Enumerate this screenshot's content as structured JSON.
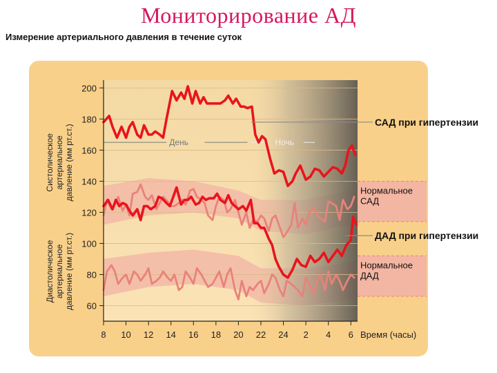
{
  "page": {
    "title": "Мониторирование АД",
    "subtitle": "Измерение артериального давления в течение суток"
  },
  "colors": {
    "panel": "#f9d08a",
    "band": "#f2b6a6",
    "series_hypertension": "#e8141c",
    "series_normal": "#e8827a",
    "night_shade": "#6d6457"
  },
  "chart_data": {
    "type": "line",
    "xlabel": "Время (часы)",
    "ylabel_systolic": "Систолическое артериальное давление (мм рт.ст.)",
    "ylabel_diastolic": "Диастолическое артериальное давление (мм рт.ст.)",
    "x_ticks": [
      "8",
      "10",
      "12",
      "14",
      "16",
      "18",
      "20",
      "22",
      "24",
      "2",
      "4",
      "6"
    ],
    "x_tick_hours": [
      8,
      10,
      12,
      14,
      16,
      18,
      20,
      22,
      24,
      26,
      28,
      30
    ],
    "y_ticks": [
      60,
      80,
      100,
      120,
      140,
      160,
      180,
      200
    ],
    "xlim": [
      8,
      30.6
    ],
    "ylim": [
      50,
      205
    ],
    "period_labels": {
      "day": "День",
      "night": "Ночь"
    },
    "night_start_hour": 21,
    "annotations": [
      {
        "text": "САД при гипертензии",
        "series": 0
      },
      {
        "text": "Нормальное САД",
        "band": 0
      },
      {
        "text": "ДАД при гипертензии",
        "series": 2
      },
      {
        "text": "Нормальное ДАД",
        "band": 1
      }
    ],
    "bands": [
      {
        "x": [
          8,
          12,
          16,
          20,
          22,
          26,
          30,
          30.6
        ],
        "low": [
          112,
          118,
          120,
          116,
          108,
          106,
          112,
          114
        ],
        "high": [
          137,
          142,
          140,
          134,
          128,
          128,
          134,
          135
        ]
      },
      {
        "x": [
          8,
          12,
          16,
          20,
          22,
          26,
          30,
          30.6
        ],
        "low": [
          66,
          72,
          74,
          70,
          62,
          60,
          64,
          66
        ],
        "high": [
          90,
          94,
          96,
          92,
          84,
          84,
          88,
          90
        ]
      }
    ],
    "series": [
      {
        "x": [
          8,
          8.5,
          8.8,
          9.2,
          9.6,
          10,
          10.3,
          10.6,
          11,
          11.3,
          11.6,
          12,
          12.3,
          12.6,
          13,
          13.3,
          13.6,
          14.1,
          14.5,
          14.9,
          15.2,
          15.5,
          15.9,
          16.2,
          16.6,
          16.9,
          17.2,
          17.6,
          18,
          18.4,
          18.8,
          19.1,
          19.5,
          19.8,
          20.2,
          20.5,
          20.8,
          21.2,
          21.5,
          21.8,
          22.1,
          22.4,
          22.8,
          23.2,
          23.6,
          24,
          24.4,
          24.8,
          25.1,
          25.5,
          26,
          26.4,
          26.8,
          27.2,
          27.6,
          28,
          28.4,
          28.8,
          29.2,
          29.5,
          29.8,
          30.1,
          30.4
        ],
        "values": [
          178,
          182,
          175,
          168,
          175,
          168,
          175,
          178,
          170,
          168,
          176,
          170,
          170,
          172,
          170,
          168,
          180,
          198,
          192,
          197,
          193,
          201,
          190,
          198,
          190,
          194,
          190,
          190,
          190,
          190,
          192,
          195,
          190,
          193,
          188,
          188,
          187,
          188,
          170,
          165,
          169,
          167,
          155,
          145,
          147,
          146,
          137,
          140,
          145,
          150,
          141,
          143,
          148,
          147,
          143,
          146,
          149,
          148,
          145,
          150,
          160,
          163,
          157
        ]
      },
      {
        "x": [
          8,
          8.3,
          8.7,
          9,
          9.3,
          9.7,
          10,
          10.3,
          10.6,
          11,
          11.3,
          11.7,
          12,
          12.3,
          12.7,
          13,
          13.3,
          13.7,
          14,
          14.3,
          14.7,
          15,
          15.3,
          15.7,
          16,
          16.3,
          16.7,
          17,
          17.3,
          17.7,
          18,
          18.3,
          18.7,
          19,
          19.3,
          19.7,
          20,
          20.3,
          20.7,
          21,
          21.3,
          21.7,
          22,
          22.3,
          22.7,
          23,
          23.3,
          23.7,
          24,
          24.3,
          24.7,
          25,
          25.3,
          25.7,
          26,
          26.3,
          26.7,
          27,
          27.3,
          27.7,
          28,
          28.3,
          28.7,
          29,
          29.3,
          29.7,
          30,
          30.3
        ],
        "values": [
          118,
          128,
          122,
          125,
          130,
          121,
          125,
          118,
          132,
          133,
          138,
          130,
          128,
          131,
          122,
          126,
          130,
          127,
          124,
          124,
          126,
          128,
          125,
          134,
          135,
          130,
          128,
          126,
          118,
          115,
          124,
          130,
          128,
          120,
          122,
          128,
          120,
          112,
          120,
          110,
          115,
          114,
          118,
          116,
          108,
          116,
          118,
          110,
          104,
          107,
          112,
          126,
          110,
          116,
          112,
          120,
          123,
          118,
          116,
          114,
          127,
          126,
          124,
          115,
          128,
          122,
          124,
          130
        ]
      },
      {
        "x": [
          8,
          8.4,
          8.8,
          9.1,
          9.4,
          9.7,
          10,
          10.3,
          10.6,
          11,
          11.3,
          11.6,
          11.9,
          12.2,
          12.6,
          12.9,
          13.2,
          13.6,
          13.9,
          14.2,
          14.5,
          14.9,
          15.2,
          15.5,
          15.8,
          16.2,
          16.5,
          16.8,
          17.1,
          17.4,
          17.8,
          18.1,
          18.4,
          18.8,
          19.1,
          19.4,
          19.7,
          20,
          20.4,
          20.7,
          21.1,
          21.4,
          21.7,
          22,
          22.3,
          22.7,
          23,
          23.3,
          23.6,
          24,
          24.4,
          24.8,
          25.2,
          25.6,
          26,
          26.4,
          26.8,
          27.2,
          27.6,
          28,
          28.4,
          28.8,
          29.2,
          29.6,
          30,
          30.2,
          30.5
        ],
        "values": [
          124,
          128,
          122,
          128,
          124,
          126,
          125,
          121,
          118,
          122,
          115,
          124,
          124,
          122,
          124,
          130,
          129,
          126,
          124,
          130,
          136,
          125,
          128,
          128,
          130,
          125,
          126,
          130,
          128,
          129,
          129,
          132,
          128,
          126,
          131,
          126,
          124,
          122,
          124,
          121,
          128,
          113,
          113,
          110,
          110,
          103,
          99,
          90,
          85,
          80,
          78,
          83,
          90,
          86,
          85,
          92,
          88,
          90,
          94,
          88,
          92,
          96,
          92,
          99,
          102,
          117,
          112
        ]
      },
      {
        "x": [
          8,
          8.3,
          8.7,
          9,
          9.3,
          9.7,
          10,
          10.3,
          10.7,
          11,
          11.3,
          11.7,
          12,
          12.3,
          12.7,
          13,
          13.3,
          13.7,
          14,
          14.3,
          14.7,
          15,
          15.3,
          15.7,
          16,
          16.3,
          16.7,
          17,
          17.3,
          17.7,
          18,
          18.3,
          18.7,
          19,
          19.3,
          19.7,
          20,
          20.3,
          20.7,
          21,
          21.3,
          21.7,
          22,
          22.3,
          22.7,
          23,
          23.3,
          23.7,
          24,
          24.3,
          24.7,
          25,
          25.3,
          25.7,
          26,
          26.3,
          26.7,
          27,
          27.3,
          27.7,
          28,
          28.3,
          28.7,
          29,
          29.3,
          29.7,
          30,
          30.3
        ],
        "values": [
          70,
          82,
          86,
          82,
          74,
          78,
          80,
          74,
          82,
          80,
          76,
          80,
          84,
          74,
          76,
          78,
          82,
          78,
          76,
          80,
          70,
          72,
          82,
          78,
          74,
          84,
          80,
          76,
          72,
          74,
          78,
          82,
          72,
          80,
          84,
          70,
          64,
          76,
          66,
          72,
          70,
          74,
          76,
          68,
          74,
          80,
          78,
          70,
          66,
          76,
          74,
          72,
          70,
          66,
          78,
          74,
          68,
          76,
          80,
          70,
          82,
          74,
          80,
          76,
          70,
          76,
          80,
          78
        ]
      }
    ]
  }
}
